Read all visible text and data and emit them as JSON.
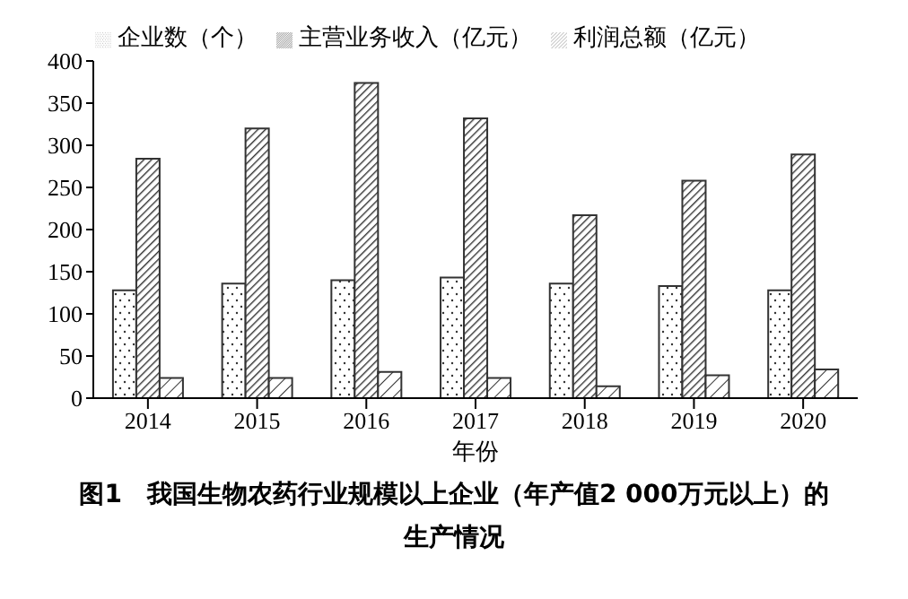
{
  "chart_data": {
    "type": "bar",
    "title": "图1　我国生物农药行业规模以上企业（年产值2 000万元以上）的生产情况",
    "xlabel": "年份",
    "categories": [
      "2014",
      "2015",
      "2016",
      "2017",
      "2018",
      "2019",
      "2020"
    ],
    "series": [
      {
        "name": "企业数（个）",
        "color": "#333333",
        "values": [
          128,
          136,
          140,
          143,
          136,
          133,
          128
        ]
      },
      {
        "name": "主营业务收入（亿元）",
        "color": "#333333",
        "values": [
          284,
          320,
          374,
          332,
          217,
          258,
          289
        ]
      },
      {
        "name": "利润总额（亿元）",
        "color": "#333333",
        "values": [
          24,
          24,
          31,
          24,
          14,
          27,
          34
        ]
      }
    ],
    "ylim": [
      0,
      400
    ],
    "yticks": [
      0,
      50,
      100,
      150,
      200,
      250,
      300,
      350,
      400
    ],
    "grid": false,
    "legend": "top"
  }
}
